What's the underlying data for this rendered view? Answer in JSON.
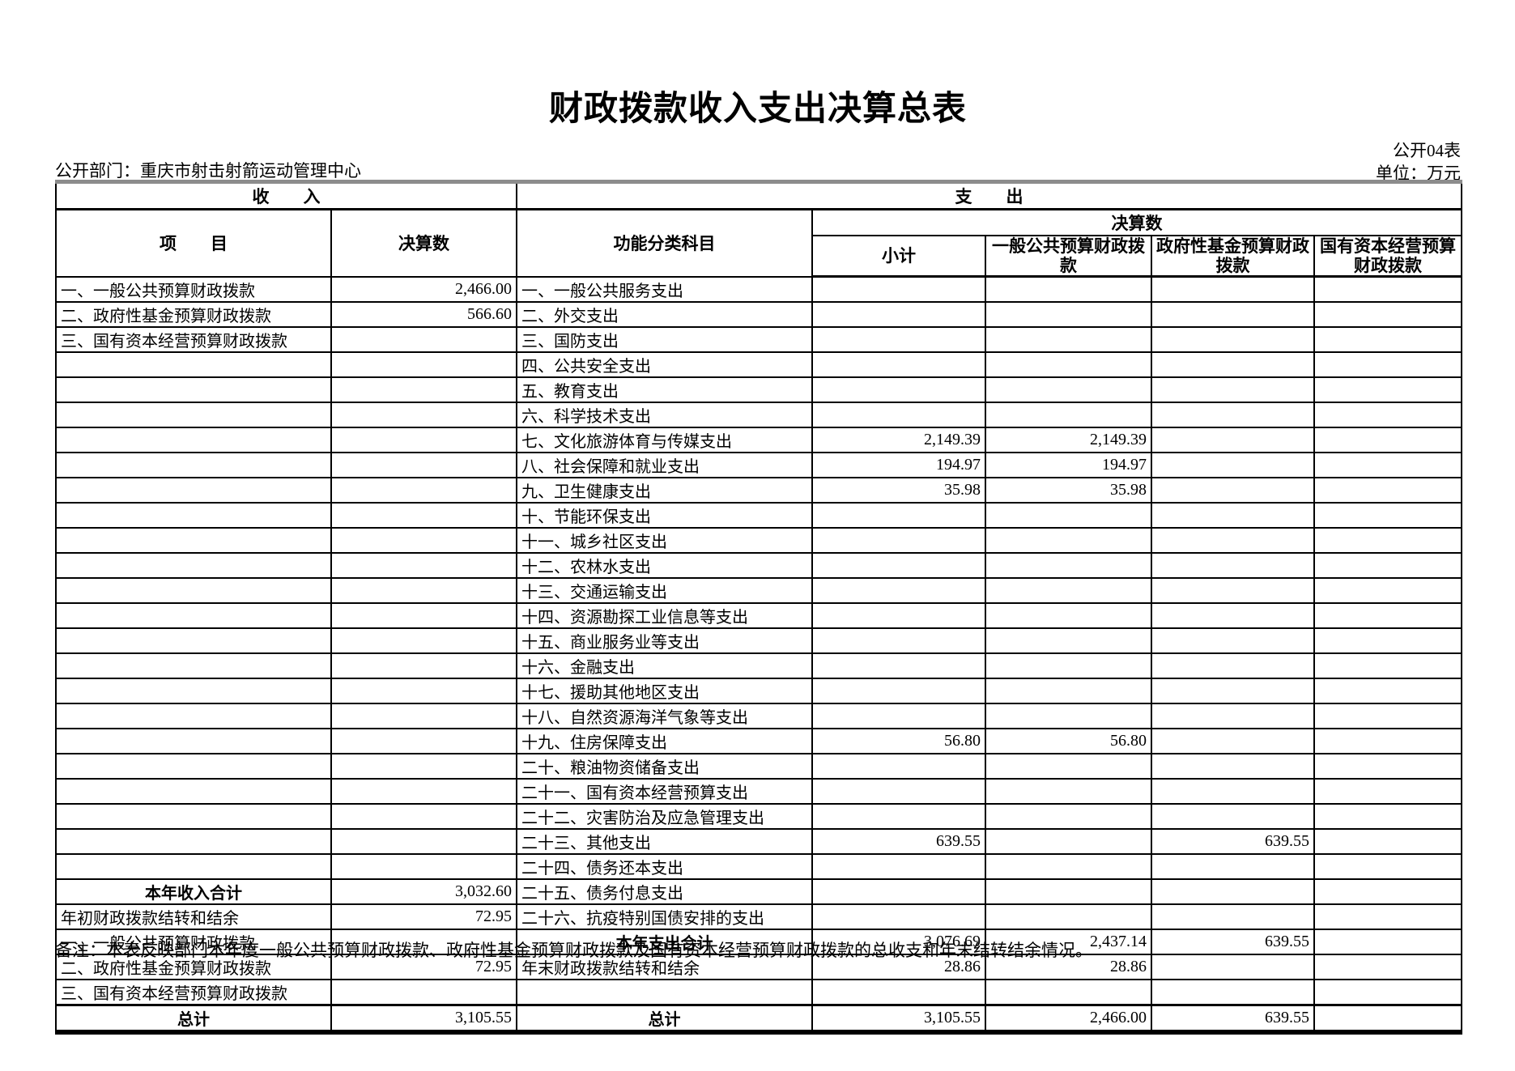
{
  "meta": {
    "title": "财政拨款收入支出决算总表",
    "table_code": "公开04表",
    "department_label": "公开部门：重庆市射击射箭运动管理中心",
    "unit_label": "单位：万元",
    "note": "备注：本表反映部门本年度一般公共预算财政拨款、政府性基金预算财政拨款及国有资本经营预算财政拨款的总收支和年末结转结余情况。"
  },
  "headers": {
    "income_section": "收　　入",
    "expenditure_section": "支　　出",
    "item": "项　　目",
    "income_amount": "决算数",
    "functional_category": "功能分类科目",
    "amount_group": "决算数",
    "subtotal": "小计",
    "general_public": "一般公共预算财政拨款",
    "govt_fund": "政府性基金预算财政拨款",
    "state_capital": "国有资本经营预算财政拨款"
  },
  "rows": [
    {
      "income_item": "一、一般公共预算财政拨款",
      "income_value": "2,466.00",
      "income_bold": false,
      "exp_item": "一、一般公共服务支出",
      "exp_bold": false,
      "exp_subtotal": "",
      "exp_general": "",
      "exp_fund": "",
      "exp_capital": "",
      "grand": false
    },
    {
      "income_item": "二、政府性基金预算财政拨款",
      "income_value": "566.60",
      "income_bold": false,
      "exp_item": "二、外交支出",
      "exp_bold": false,
      "exp_subtotal": "",
      "exp_general": "",
      "exp_fund": "",
      "exp_capital": "",
      "grand": false
    },
    {
      "income_item": "三、国有资本经营预算财政拨款",
      "income_value": "",
      "income_bold": false,
      "exp_item": "三、国防支出",
      "exp_bold": false,
      "exp_subtotal": "",
      "exp_general": "",
      "exp_fund": "",
      "exp_capital": "",
      "grand": false
    },
    {
      "income_item": "",
      "income_value": "",
      "income_bold": false,
      "exp_item": "四、公共安全支出",
      "exp_bold": false,
      "exp_subtotal": "",
      "exp_general": "",
      "exp_fund": "",
      "exp_capital": "",
      "grand": false
    },
    {
      "income_item": "",
      "income_value": "",
      "income_bold": false,
      "exp_item": "五、教育支出",
      "exp_bold": false,
      "exp_subtotal": "",
      "exp_general": "",
      "exp_fund": "",
      "exp_capital": "",
      "grand": false
    },
    {
      "income_item": "",
      "income_value": "",
      "income_bold": false,
      "exp_item": "六、科学技术支出",
      "exp_bold": false,
      "exp_subtotal": "",
      "exp_general": "",
      "exp_fund": "",
      "exp_capital": "",
      "grand": false
    },
    {
      "income_item": "",
      "income_value": "",
      "income_bold": false,
      "exp_item": "七、文化旅游体育与传媒支出",
      "exp_bold": false,
      "exp_subtotal": "2,149.39",
      "exp_general": "2,149.39",
      "exp_fund": "",
      "exp_capital": "",
      "grand": false
    },
    {
      "income_item": "",
      "income_value": "",
      "income_bold": false,
      "exp_item": "八、社会保障和就业支出",
      "exp_bold": false,
      "exp_subtotal": "194.97",
      "exp_general": "194.97",
      "exp_fund": "",
      "exp_capital": "",
      "grand": false
    },
    {
      "income_item": "",
      "income_value": "",
      "income_bold": false,
      "exp_item": "九、卫生健康支出",
      "exp_bold": false,
      "exp_subtotal": "35.98",
      "exp_general": "35.98",
      "exp_fund": "",
      "exp_capital": "",
      "grand": false
    },
    {
      "income_item": "",
      "income_value": "",
      "income_bold": false,
      "exp_item": "十、节能环保支出",
      "exp_bold": false,
      "exp_subtotal": "",
      "exp_general": "",
      "exp_fund": "",
      "exp_capital": "",
      "grand": false
    },
    {
      "income_item": "",
      "income_value": "",
      "income_bold": false,
      "exp_item": "十一、城乡社区支出",
      "exp_bold": false,
      "exp_subtotal": "",
      "exp_general": "",
      "exp_fund": "",
      "exp_capital": "",
      "grand": false
    },
    {
      "income_item": "",
      "income_value": "",
      "income_bold": false,
      "exp_item": "十二、农林水支出",
      "exp_bold": false,
      "exp_subtotal": "",
      "exp_general": "",
      "exp_fund": "",
      "exp_capital": "",
      "grand": false
    },
    {
      "income_item": "",
      "income_value": "",
      "income_bold": false,
      "exp_item": "十三、交通运输支出",
      "exp_bold": false,
      "exp_subtotal": "",
      "exp_general": "",
      "exp_fund": "",
      "exp_capital": "",
      "grand": false
    },
    {
      "income_item": "",
      "income_value": "",
      "income_bold": false,
      "exp_item": "十四、资源勘探工业信息等支出",
      "exp_bold": false,
      "exp_subtotal": "",
      "exp_general": "",
      "exp_fund": "",
      "exp_capital": "",
      "grand": false
    },
    {
      "income_item": "",
      "income_value": "",
      "income_bold": false,
      "exp_item": "十五、商业服务业等支出",
      "exp_bold": false,
      "exp_subtotal": "",
      "exp_general": "",
      "exp_fund": "",
      "exp_capital": "",
      "grand": false
    },
    {
      "income_item": "",
      "income_value": "",
      "income_bold": false,
      "exp_item": "十六、金融支出",
      "exp_bold": false,
      "exp_subtotal": "",
      "exp_general": "",
      "exp_fund": "",
      "exp_capital": "",
      "grand": false
    },
    {
      "income_item": "",
      "income_value": "",
      "income_bold": false,
      "exp_item": "十七、援助其他地区支出",
      "exp_bold": false,
      "exp_subtotal": "",
      "exp_general": "",
      "exp_fund": "",
      "exp_capital": "",
      "grand": false
    },
    {
      "income_item": "",
      "income_value": "",
      "income_bold": false,
      "exp_item": "十八、自然资源海洋气象等支出",
      "exp_bold": false,
      "exp_subtotal": "",
      "exp_general": "",
      "exp_fund": "",
      "exp_capital": "",
      "grand": false
    },
    {
      "income_item": "",
      "income_value": "",
      "income_bold": false,
      "exp_item": "十九、住房保障支出",
      "exp_bold": false,
      "exp_subtotal": "56.80",
      "exp_general": "56.80",
      "exp_fund": "",
      "exp_capital": "",
      "grand": false
    },
    {
      "income_item": "",
      "income_value": "",
      "income_bold": false,
      "exp_item": "二十、粮油物资储备支出",
      "exp_bold": false,
      "exp_subtotal": "",
      "exp_general": "",
      "exp_fund": "",
      "exp_capital": "",
      "grand": false
    },
    {
      "income_item": "",
      "income_value": "",
      "income_bold": false,
      "exp_item": "二十一、国有资本经营预算支出",
      "exp_bold": false,
      "exp_subtotal": "",
      "exp_general": "",
      "exp_fund": "",
      "exp_capital": "",
      "grand": false
    },
    {
      "income_item": "",
      "income_value": "",
      "income_bold": false,
      "exp_item": "二十二、灾害防治及应急管理支出",
      "exp_bold": false,
      "exp_subtotal": "",
      "exp_general": "",
      "exp_fund": "",
      "exp_capital": "",
      "grand": false
    },
    {
      "income_item": "",
      "income_value": "",
      "income_bold": false,
      "exp_item": "二十三、其他支出",
      "exp_bold": false,
      "exp_subtotal": "639.55",
      "exp_general": "",
      "exp_fund": "639.55",
      "exp_capital": "",
      "grand": false
    },
    {
      "income_item": "",
      "income_value": "",
      "income_bold": false,
      "exp_item": "二十四、债务还本支出",
      "exp_bold": false,
      "exp_subtotal": "",
      "exp_general": "",
      "exp_fund": "",
      "exp_capital": "",
      "grand": false
    },
    {
      "income_item": "本年收入合计",
      "income_value": "3,032.60",
      "income_bold": true,
      "exp_item": "二十五、债务付息支出",
      "exp_bold": false,
      "exp_subtotal": "",
      "exp_general": "",
      "exp_fund": "",
      "exp_capital": "",
      "grand": false
    },
    {
      "income_item": "年初财政拨款结转和结余",
      "income_value": "72.95",
      "income_bold": false,
      "exp_item": "二十六、抗疫特别国债安排的支出",
      "exp_bold": false,
      "exp_subtotal": "",
      "exp_general": "",
      "exp_fund": "",
      "exp_capital": "",
      "grand": false
    },
    {
      "income_item": "一、一般公共预算财政拨款",
      "income_value": "",
      "income_bold": false,
      "exp_item": "本年支出合计",
      "exp_bold": true,
      "exp_subtotal": "3,076.69",
      "exp_general": "2,437.14",
      "exp_fund": "639.55",
      "exp_capital": "",
      "grand": false
    },
    {
      "income_item": "二、政府性基金预算财政拨款",
      "income_value": "72.95",
      "income_bold": false,
      "exp_item": "年末财政拨款结转和结余",
      "exp_bold": false,
      "exp_subtotal": "28.86",
      "exp_general": "28.86",
      "exp_fund": "",
      "exp_capital": "",
      "grand": false
    },
    {
      "income_item": "三、国有资本经营预算财政拨款",
      "income_value": "",
      "income_bold": false,
      "exp_item": "",
      "exp_bold": false,
      "exp_subtotal": "",
      "exp_general": "",
      "exp_fund": "",
      "exp_capital": "",
      "grand": false
    },
    {
      "income_item": "总计",
      "income_value": "3,105.55",
      "income_bold": true,
      "exp_item": "总计",
      "exp_bold": true,
      "exp_subtotal": "3,105.55",
      "exp_general": "2,466.00",
      "exp_fund": "639.55",
      "exp_capital": "",
      "grand": true
    }
  ]
}
